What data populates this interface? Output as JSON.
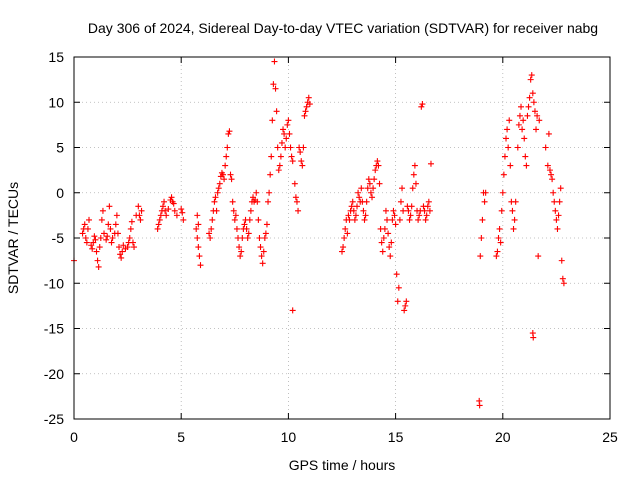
{
  "chart_data": {
    "type": "scatter",
    "title": "Day 306 of 2024, Sidereal Day-to-day VTEC variation (SDTVAR) for receiver nabg",
    "xlabel": "GPS time / hours",
    "ylabel": "SDTVAR / TECUs",
    "xlim": [
      0,
      25
    ],
    "ylim": [
      -25,
      15
    ],
    "xticks": [
      0,
      5,
      10,
      15,
      20,
      25
    ],
    "yticks": [
      -25,
      -20,
      -15,
      -10,
      -5,
      0,
      5,
      10,
      15
    ],
    "grid": true,
    "marker": "+",
    "series": [
      {
        "name": "SDTVAR",
        "color": "#ff0000",
        "points": [
          [
            0.0,
            -7.5
          ],
          [
            0.4,
            -4.5
          ],
          [
            0.45,
            -4.0
          ],
          [
            0.5,
            -3.5
          ],
          [
            0.55,
            -5.0
          ],
          [
            0.6,
            -5.5
          ],
          [
            0.65,
            -4.0
          ],
          [
            0.7,
            -3.0
          ],
          [
            0.8,
            -5.8
          ],
          [
            0.85,
            -6.2
          ],
          [
            0.9,
            -5.5
          ],
          [
            0.95,
            -4.8
          ],
          [
            1.0,
            -5.2
          ],
          [
            1.05,
            -6.5
          ],
          [
            1.1,
            -7.5
          ],
          [
            1.15,
            -8.2
          ],
          [
            1.2,
            -6.0
          ],
          [
            1.25,
            -5.0
          ],
          [
            1.3,
            -3.0
          ],
          [
            1.35,
            -2.0
          ],
          [
            1.4,
            -4.5
          ],
          [
            1.5,
            -5.2
          ],
          [
            1.55,
            -4.8
          ],
          [
            1.6,
            -3.5
          ],
          [
            1.65,
            -1.5
          ],
          [
            1.7,
            -4.0
          ],
          [
            1.75,
            -5.5
          ],
          [
            1.8,
            -5.0
          ],
          [
            1.9,
            -4.5
          ],
          [
            1.95,
            -3.5
          ],
          [
            2.0,
            -2.5
          ],
          [
            2.05,
            -4.5
          ],
          [
            2.1,
            -6.0
          ],
          [
            2.15,
            -6.8
          ],
          [
            2.2,
            -7.2
          ],
          [
            2.25,
            -6.5
          ],
          [
            2.3,
            -5.8
          ],
          [
            2.4,
            -6.2
          ],
          [
            2.5,
            -6.0
          ],
          [
            2.55,
            -5.5
          ],
          [
            2.6,
            -5.0
          ],
          [
            2.65,
            -4.0
          ],
          [
            2.7,
            -3.2
          ],
          [
            2.75,
            -5.5
          ],
          [
            2.8,
            -6.0
          ],
          [
            2.9,
            -2.5
          ],
          [
            3.0,
            -1.5
          ],
          [
            3.05,
            -2.5
          ],
          [
            3.1,
            -3.0
          ],
          [
            3.15,
            -2.0
          ],
          [
            3.9,
            -4.0
          ],
          [
            3.95,
            -3.5
          ],
          [
            4.0,
            -3.0
          ],
          [
            4.05,
            -2.5
          ],
          [
            4.1,
            -2.0
          ],
          [
            4.15,
            -1.5
          ],
          [
            4.2,
            -1.0
          ],
          [
            4.25,
            -2.0
          ],
          [
            4.3,
            -2.5
          ],
          [
            4.4,
            -1.8
          ],
          [
            4.5,
            -0.8
          ],
          [
            4.55,
            -0.5
          ],
          [
            4.6,
            -1.0
          ],
          [
            4.65,
            -1.2
          ],
          [
            4.7,
            -2.0
          ],
          [
            4.8,
            -2.5
          ],
          [
            5.0,
            -1.8
          ],
          [
            5.05,
            -2.2
          ],
          [
            5.1,
            -3.0
          ],
          [
            5.7,
            -4.0
          ],
          [
            5.75,
            -5.0
          ],
          [
            5.8,
            -6.0
          ],
          [
            5.85,
            -7.0
          ],
          [
            5.9,
            -8.0
          ],
          [
            5.75,
            -2.5
          ],
          [
            5.8,
            -3.5
          ],
          [
            6.3,
            -4.5
          ],
          [
            6.35,
            -5.0
          ],
          [
            6.4,
            -4.0
          ],
          [
            6.45,
            -3.0
          ],
          [
            6.5,
            -2.0
          ],
          [
            6.55,
            -1.0
          ],
          [
            6.6,
            -0.5
          ],
          [
            6.65,
            -2.0
          ],
          [
            6.7,
            0.0
          ],
          [
            6.75,
            0.5
          ],
          [
            6.8,
            1.0
          ],
          [
            6.85,
            1.8
          ],
          [
            6.9,
            2.2
          ],
          [
            6.95,
            2.0
          ],
          [
            7.0,
            1.5
          ],
          [
            7.05,
            3.0
          ],
          [
            7.1,
            4.0
          ],
          [
            7.15,
            5.0
          ],
          [
            7.2,
            6.5
          ],
          [
            7.25,
            6.8
          ],
          [
            7.3,
            2.0
          ],
          [
            7.35,
            1.5
          ],
          [
            7.4,
            -1.0
          ],
          [
            7.45,
            -2.0
          ],
          [
            7.5,
            -3.0
          ],
          [
            7.55,
            -2.5
          ],
          [
            7.6,
            -4.0
          ],
          [
            7.65,
            -5.0
          ],
          [
            7.7,
            -6.0
          ],
          [
            7.75,
            -7.0
          ],
          [
            7.8,
            -6.5
          ],
          [
            7.85,
            -5.0
          ],
          [
            7.9,
            -4.0
          ],
          [
            7.95,
            -3.5
          ],
          [
            8.0,
            -3.0
          ],
          [
            8.05,
            -4.0
          ],
          [
            8.1,
            -5.0
          ],
          [
            8.15,
            -4.5
          ],
          [
            8.2,
            -3.0
          ],
          [
            8.25,
            -2.0
          ],
          [
            8.3,
            -1.0
          ],
          [
            8.35,
            -0.5
          ],
          [
            8.4,
            -1.0
          ],
          [
            8.45,
            -0.8
          ],
          [
            8.5,
            0.0
          ],
          [
            8.55,
            -1.0
          ],
          [
            8.6,
            -3.0
          ],
          [
            8.65,
            -5.0
          ],
          [
            8.7,
            -6.0
          ],
          [
            8.75,
            -7.0
          ],
          [
            8.8,
            -7.8
          ],
          [
            8.85,
            -6.5
          ],
          [
            8.9,
            -5.0
          ],
          [
            8.95,
            -4.5
          ],
          [
            9.0,
            -3.5
          ],
          [
            9.05,
            -1.0
          ],
          [
            9.1,
            0.0
          ],
          [
            9.15,
            2.0
          ],
          [
            9.2,
            4.0
          ],
          [
            9.25,
            8.0
          ],
          [
            9.3,
            12.0
          ],
          [
            9.35,
            14.5
          ],
          [
            9.4,
            11.5
          ],
          [
            9.45,
            9.0
          ],
          [
            9.5,
            5.0
          ],
          [
            9.55,
            2.5
          ],
          [
            9.6,
            3.0
          ],
          [
            9.65,
            4.0
          ],
          [
            9.7,
            5.5
          ],
          [
            9.75,
            7.0
          ],
          [
            9.8,
            6.5
          ],
          [
            9.85,
            5.0
          ],
          [
            9.9,
            6.0
          ],
          [
            9.95,
            7.5
          ],
          [
            10.0,
            8.0
          ],
          [
            10.05,
            6.5
          ],
          [
            10.1,
            5.0
          ],
          [
            10.15,
            4.0
          ],
          [
            10.2,
            3.5
          ],
          [
            10.2,
            -13.0
          ],
          [
            10.3,
            1.0
          ],
          [
            10.35,
            -0.5
          ],
          [
            10.4,
            -1.0
          ],
          [
            10.45,
            -2.0
          ],
          [
            10.5,
            5.0
          ],
          [
            10.55,
            4.5
          ],
          [
            10.6,
            3.5
          ],
          [
            10.65,
            3.0
          ],
          [
            10.7,
            5.0
          ],
          [
            10.75,
            8.5
          ],
          [
            10.8,
            9.0
          ],
          [
            10.85,
            9.5
          ],
          [
            10.9,
            10.0
          ],
          [
            10.95,
            10.5
          ],
          [
            11.0,
            9.8
          ],
          [
            12.5,
            -6.5
          ],
          [
            12.55,
            -6.0
          ],
          [
            12.6,
            -5.0
          ],
          [
            12.65,
            -4.0
          ],
          [
            12.7,
            -3.0
          ],
          [
            12.75,
            -4.5
          ],
          [
            12.8,
            -2.5
          ],
          [
            12.85,
            -3.0
          ],
          [
            12.9,
            -2.0
          ],
          [
            12.95,
            -1.5
          ],
          [
            13.0,
            -1.0
          ],
          [
            13.05,
            -2.0
          ],
          [
            13.1,
            -3.0
          ],
          [
            13.15,
            -2.5
          ],
          [
            13.2,
            -1.5
          ],
          [
            13.25,
            0.0
          ],
          [
            13.3,
            -0.5
          ],
          [
            13.35,
            -1.0
          ],
          [
            13.4,
            0.5
          ],
          [
            13.45,
            -1.0
          ],
          [
            13.5,
            -2.0
          ],
          [
            13.55,
            -3.0
          ],
          [
            13.6,
            -2.5
          ],
          [
            13.65,
            -1.0
          ],
          [
            13.7,
            0.5
          ],
          [
            13.75,
            1.5
          ],
          [
            13.8,
            1.0
          ],
          [
            13.85,
            0.0
          ],
          [
            13.9,
            -0.5
          ],
          [
            13.95,
            0.5
          ],
          [
            14.0,
            1.5
          ],
          [
            14.05,
            2.5
          ],
          [
            14.1,
            3.0
          ],
          [
            14.15,
            3.5
          ],
          [
            14.2,
            3.0
          ],
          [
            14.25,
            1.0
          ],
          [
            14.3,
            -4.0
          ],
          [
            14.35,
            -5.5
          ],
          [
            14.4,
            -6.5
          ],
          [
            14.45,
            -5.0
          ],
          [
            14.5,
            -4.0
          ],
          [
            14.55,
            -2.0
          ],
          [
            14.6,
            -3.0
          ],
          [
            14.65,
            -4.5
          ],
          [
            14.7,
            -6.0
          ],
          [
            14.75,
            -7.0
          ],
          [
            14.8,
            -5.5
          ],
          [
            14.85,
            -3.0
          ],
          [
            14.9,
            -2.0
          ],
          [
            14.95,
            -2.5
          ],
          [
            15.0,
            -3.5
          ],
          [
            15.05,
            -9.0
          ],
          [
            15.1,
            -12.0
          ],
          [
            15.15,
            -10.5
          ],
          [
            15.2,
            -3.0
          ],
          [
            15.25,
            -1.0
          ],
          [
            15.3,
            0.5
          ],
          [
            15.35,
            -2.0
          ],
          [
            15.4,
            -13.0
          ],
          [
            15.45,
            -12.5
          ],
          [
            15.5,
            -12.0
          ],
          [
            15.55,
            -1.5
          ],
          [
            15.6,
            -2.0
          ],
          [
            15.65,
            -3.0
          ],
          [
            15.7,
            -2.5
          ],
          [
            15.75,
            -1.5
          ],
          [
            15.8,
            0.5
          ],
          [
            15.85,
            2.0
          ],
          [
            15.9,
            3.0
          ],
          [
            15.95,
            1.0
          ],
          [
            16.0,
            -2.0
          ],
          [
            16.05,
            -3.0
          ],
          [
            16.1,
            -2.5
          ],
          [
            16.15,
            -2.0
          ],
          [
            16.2,
            9.5
          ],
          [
            16.25,
            9.8
          ],
          [
            16.3,
            -1.5
          ],
          [
            16.35,
            -2.0
          ],
          [
            16.4,
            -3.0
          ],
          [
            16.45,
            -2.5
          ],
          [
            16.5,
            -1.5
          ],
          [
            16.55,
            -1.0
          ],
          [
            16.6,
            -2.0
          ],
          [
            16.65,
            3.2
          ],
          [
            18.9,
            -23.0
          ],
          [
            18.92,
            -23.5
          ],
          [
            18.95,
            -7.0
          ],
          [
            19.0,
            -5.0
          ],
          [
            19.05,
            -3.0
          ],
          [
            19.1,
            0.0
          ],
          [
            19.15,
            -1.0
          ],
          [
            19.2,
            0.0
          ],
          [
            19.7,
            -7.0
          ],
          [
            19.75,
            -6.5
          ],
          [
            19.8,
            -5.0
          ],
          [
            19.85,
            -4.0
          ],
          [
            19.9,
            -5.5
          ],
          [
            19.95,
            -2.0
          ],
          [
            20.0,
            0.0
          ],
          [
            20.05,
            2.0
          ],
          [
            20.1,
            4.0
          ],
          [
            20.15,
            6.0
          ],
          [
            20.2,
            7.0
          ],
          [
            20.25,
            5.0
          ],
          [
            20.3,
            8.0
          ],
          [
            20.35,
            3.0
          ],
          [
            20.4,
            -1.0
          ],
          [
            20.45,
            -2.0
          ],
          [
            20.5,
            -4.0
          ],
          [
            20.55,
            -3.0
          ],
          [
            20.6,
            -1.0
          ],
          [
            20.7,
            5.0
          ],
          [
            20.75,
            7.5
          ],
          [
            20.8,
            8.5
          ],
          [
            20.85,
            9.5
          ],
          [
            20.9,
            7.0
          ],
          [
            20.95,
            8.0
          ],
          [
            21.0,
            6.0
          ],
          [
            21.05,
            4.0
          ],
          [
            21.1,
            3.0
          ],
          [
            21.15,
            8.5
          ],
          [
            21.2,
            9.5
          ],
          [
            21.25,
            10.5
          ],
          [
            21.3,
            12.5
          ],
          [
            21.35,
            13.0
          ],
          [
            21.4,
            11.0
          ],
          [
            21.45,
            10.0
          ],
          [
            21.4,
            -15.5
          ],
          [
            21.42,
            -16.0
          ],
          [
            21.5,
            9.0
          ],
          [
            21.55,
            7.0
          ],
          [
            21.6,
            8.5
          ],
          [
            21.65,
            -7.0
          ],
          [
            21.7,
            8.0
          ],
          [
            22.0,
            5.0
          ],
          [
            22.1,
            3.0
          ],
          [
            22.15,
            6.5
          ],
          [
            22.2,
            2.5
          ],
          [
            22.25,
            2.0
          ],
          [
            22.3,
            1.5
          ],
          [
            22.35,
            0.0
          ],
          [
            22.4,
            -1.0
          ],
          [
            22.45,
            -2.0
          ],
          [
            22.5,
            -3.0
          ],
          [
            22.55,
            -4.0
          ],
          [
            22.6,
            -2.5
          ],
          [
            22.65,
            -1.0
          ],
          [
            22.7,
            0.5
          ],
          [
            22.75,
            -7.5
          ],
          [
            22.8,
            -9.5
          ],
          [
            22.85,
            -10.0
          ]
        ]
      }
    ]
  }
}
